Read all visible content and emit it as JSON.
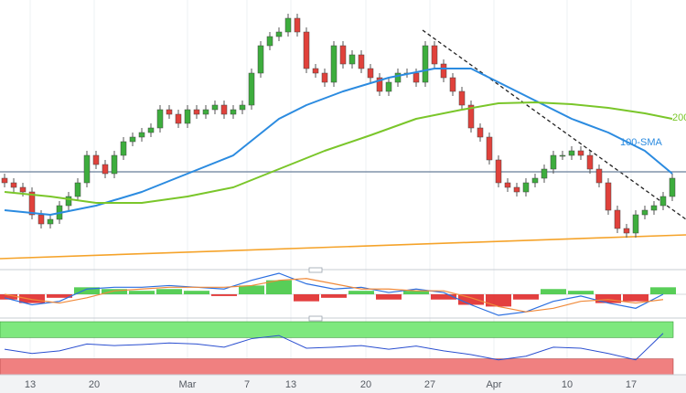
{
  "chart_data": {
    "type": "candlestick",
    "xlim": [
      -0.5,
      74.5
    ],
    "xticks": [
      {
        "value": 2.8,
        "label": "13"
      },
      {
        "value": 9.8,
        "label": "20"
      },
      {
        "value": 20,
        "label": "Mar"
      },
      {
        "value": 26.5,
        "label": "7"
      },
      {
        "value": 31.3,
        "label": "13"
      },
      {
        "value": 39.5,
        "label": "20"
      },
      {
        "value": 46.5,
        "label": "27"
      },
      {
        "value": 53.5,
        "label": "Apr"
      },
      {
        "value": 61.5,
        "label": "10"
      },
      {
        "value": 68.5,
        "label": "17"
      }
    ],
    "grid": true,
    "ylim": [
      0,
      293
    ],
    "bull_color": "#3dad3d",
    "bear_color": "#e0413b",
    "open": [
      98,
      93,
      88,
      83,
      58,
      48,
      53,
      68,
      78,
      93,
      123,
      113,
      103,
      123,
      138,
      143,
      148,
      153,
      173,
      168,
      158,
      173,
      168,
      173,
      178,
      168,
      173,
      178,
      213,
      243,
      253,
      258,
      273,
      258,
      218,
      213,
      203,
      243,
      223,
      233,
      218,
      208,
      193,
      203,
      213,
      213,
      203,
      243,
      223,
      208,
      193,
      178,
      153,
      143,
      118,
      93,
      88,
      83,
      93,
      98,
      108,
      123,
      123,
      128,
      123,
      108,
      93,
      63,
      43,
      38,
      58,
      63,
      68,
      78
    ],
    "high": [
      103,
      98,
      93,
      88,
      63,
      58,
      73,
      83,
      98,
      128,
      128,
      118,
      128,
      143,
      148,
      153,
      158,
      178,
      178,
      173,
      178,
      178,
      178,
      183,
      183,
      178,
      183,
      218,
      248,
      258,
      263,
      278,
      278,
      263,
      223,
      218,
      248,
      248,
      238,
      238,
      223,
      213,
      208,
      218,
      218,
      218,
      248,
      248,
      228,
      213,
      198,
      183,
      158,
      148,
      123,
      98,
      93,
      98,
      103,
      113,
      128,
      128,
      133,
      133,
      128,
      113,
      98,
      68,
      48,
      63,
      68,
      73,
      83,
      103
    ],
    "low": [
      88,
      83,
      78,
      53,
      43,
      43,
      48,
      63,
      73,
      88,
      108,
      98,
      98,
      118,
      133,
      138,
      143,
      148,
      163,
      153,
      153,
      163,
      163,
      168,
      163,
      163,
      168,
      173,
      208,
      238,
      248,
      253,
      253,
      213,
      208,
      198,
      198,
      218,
      218,
      213,
      203,
      188,
      188,
      198,
      208,
      198,
      198,
      218,
      203,
      188,
      173,
      148,
      138,
      113,
      88,
      83,
      78,
      78,
      88,
      93,
      103,
      118,
      118,
      118,
      103,
      88,
      58,
      38,
      33,
      33,
      53,
      58,
      63,
      73
    ],
    "close": [
      93,
      88,
      83,
      58,
      48,
      53,
      68,
      78,
      93,
      123,
      113,
      103,
      123,
      138,
      143,
      148,
      153,
      173,
      168,
      158,
      173,
      168,
      173,
      178,
      168,
      173,
      178,
      213,
      243,
      253,
      258,
      273,
      258,
      218,
      213,
      203,
      243,
      223,
      233,
      218,
      208,
      193,
      203,
      213,
      213,
      203,
      243,
      223,
      208,
      193,
      178,
      153,
      143,
      118,
      93,
      88,
      83,
      93,
      98,
      108,
      123,
      123,
      128,
      123,
      108,
      93,
      63,
      43,
      38,
      58,
      63,
      68,
      78,
      98
    ],
    "overlays": [
      {
        "name": "100-SMA",
        "color": "#2b8be0",
        "x": [
          0,
          5,
          10,
          15,
          20,
          25,
          30,
          33,
          37,
          42,
          47,
          51,
          54,
          58,
          62,
          66,
          70,
          73
        ],
        "values": [
          63,
          58,
          68,
          83,
          103,
          123,
          163,
          178,
          193,
          208,
          218,
          218,
          203,
          183,
          163,
          148,
          128,
          103
        ]
      },
      {
        "name": "200",
        "color": "#7ac62a",
        "x": [
          0,
          5,
          10,
          15,
          20,
          25,
          30,
          35,
          40,
          45,
          50,
          54,
          58,
          62,
          66,
          70,
          73
        ],
        "values": [
          83,
          78,
          71,
          71,
          78,
          88,
          108,
          128,
          145,
          163,
          173,
          180,
          181,
          179,
          175,
          169,
          163
        ]
      }
    ],
    "lines": [
      {
        "color": "#222222",
        "dashed": true,
        "x": [
          45.7,
          74.5
        ],
        "values": [
          260,
          53
        ]
      },
      {
        "color": "#f5a32a",
        "dashed": false,
        "x": [
          -0.5,
          74.5
        ],
        "values": [
          10,
          36
        ]
      },
      {
        "color": "#8193aa",
        "dashed": false,
        "x": [
          -0.5,
          74.5
        ],
        "values": [
          105,
          105
        ]
      }
    ],
    "macd": {
      "ylim": [
        -12,
        12
      ],
      "x": [
        0,
        3,
        6,
        9,
        12,
        15,
        18,
        21,
        24,
        27,
        30,
        33,
        36,
        39,
        42,
        45,
        48,
        51,
        54,
        57,
        60,
        63,
        66,
        69,
        72
      ],
      "histogram": [
        -3,
        -5,
        -2,
        4,
        3,
        2,
        3,
        2,
        -1,
        5,
        8,
        -4,
        -2,
        2,
        -3,
        2,
        -3,
        -6,
        -7,
        -3,
        3,
        2,
        -5,
        -4,
        4
      ],
      "macd_line": [
        -2,
        -6,
        -4,
        3,
        4,
        4,
        5,
        4,
        3,
        8,
        12,
        6,
        3,
        4,
        1,
        3,
        1,
        -6,
        -12,
        -10,
        -4,
        -1,
        -5,
        -8,
        0
      ],
      "signal_line": [
        0,
        -3,
        -5,
        -2,
        2,
        3,
        4,
        4,
        4,
        5,
        8,
        9,
        6,
        3,
        3,
        2,
        2,
        -2,
        -7,
        -10,
        -8,
        -4,
        -3,
        -5,
        -3
      ],
      "up_color": "#46c946",
      "down_color": "#e02a2a",
      "macd_color": "#2b6fe0",
      "signal_color": "#f08a3a"
    },
    "rsi": {
      "ylim": [
        0,
        100
      ],
      "upper_band": [
        70,
        100
      ],
      "upper_color": "#7ee87e",
      "lower_band": [
        0,
        30
      ],
      "lower_color": "#f08080",
      "color": "#2b4fd0",
      "x": [
        0,
        3,
        6,
        9,
        12,
        15,
        18,
        21,
        24,
        27,
        30,
        33,
        36,
        39,
        42,
        45,
        48,
        51,
        54,
        57,
        60,
        63,
        66,
        69,
        72
      ],
      "values": [
        48,
        40,
        45,
        58,
        55,
        57,
        60,
        58,
        52,
        68,
        74,
        50,
        52,
        55,
        48,
        54,
        45,
        38,
        28,
        35,
        52,
        50,
        40,
        28,
        78
      ]
    }
  }
}
